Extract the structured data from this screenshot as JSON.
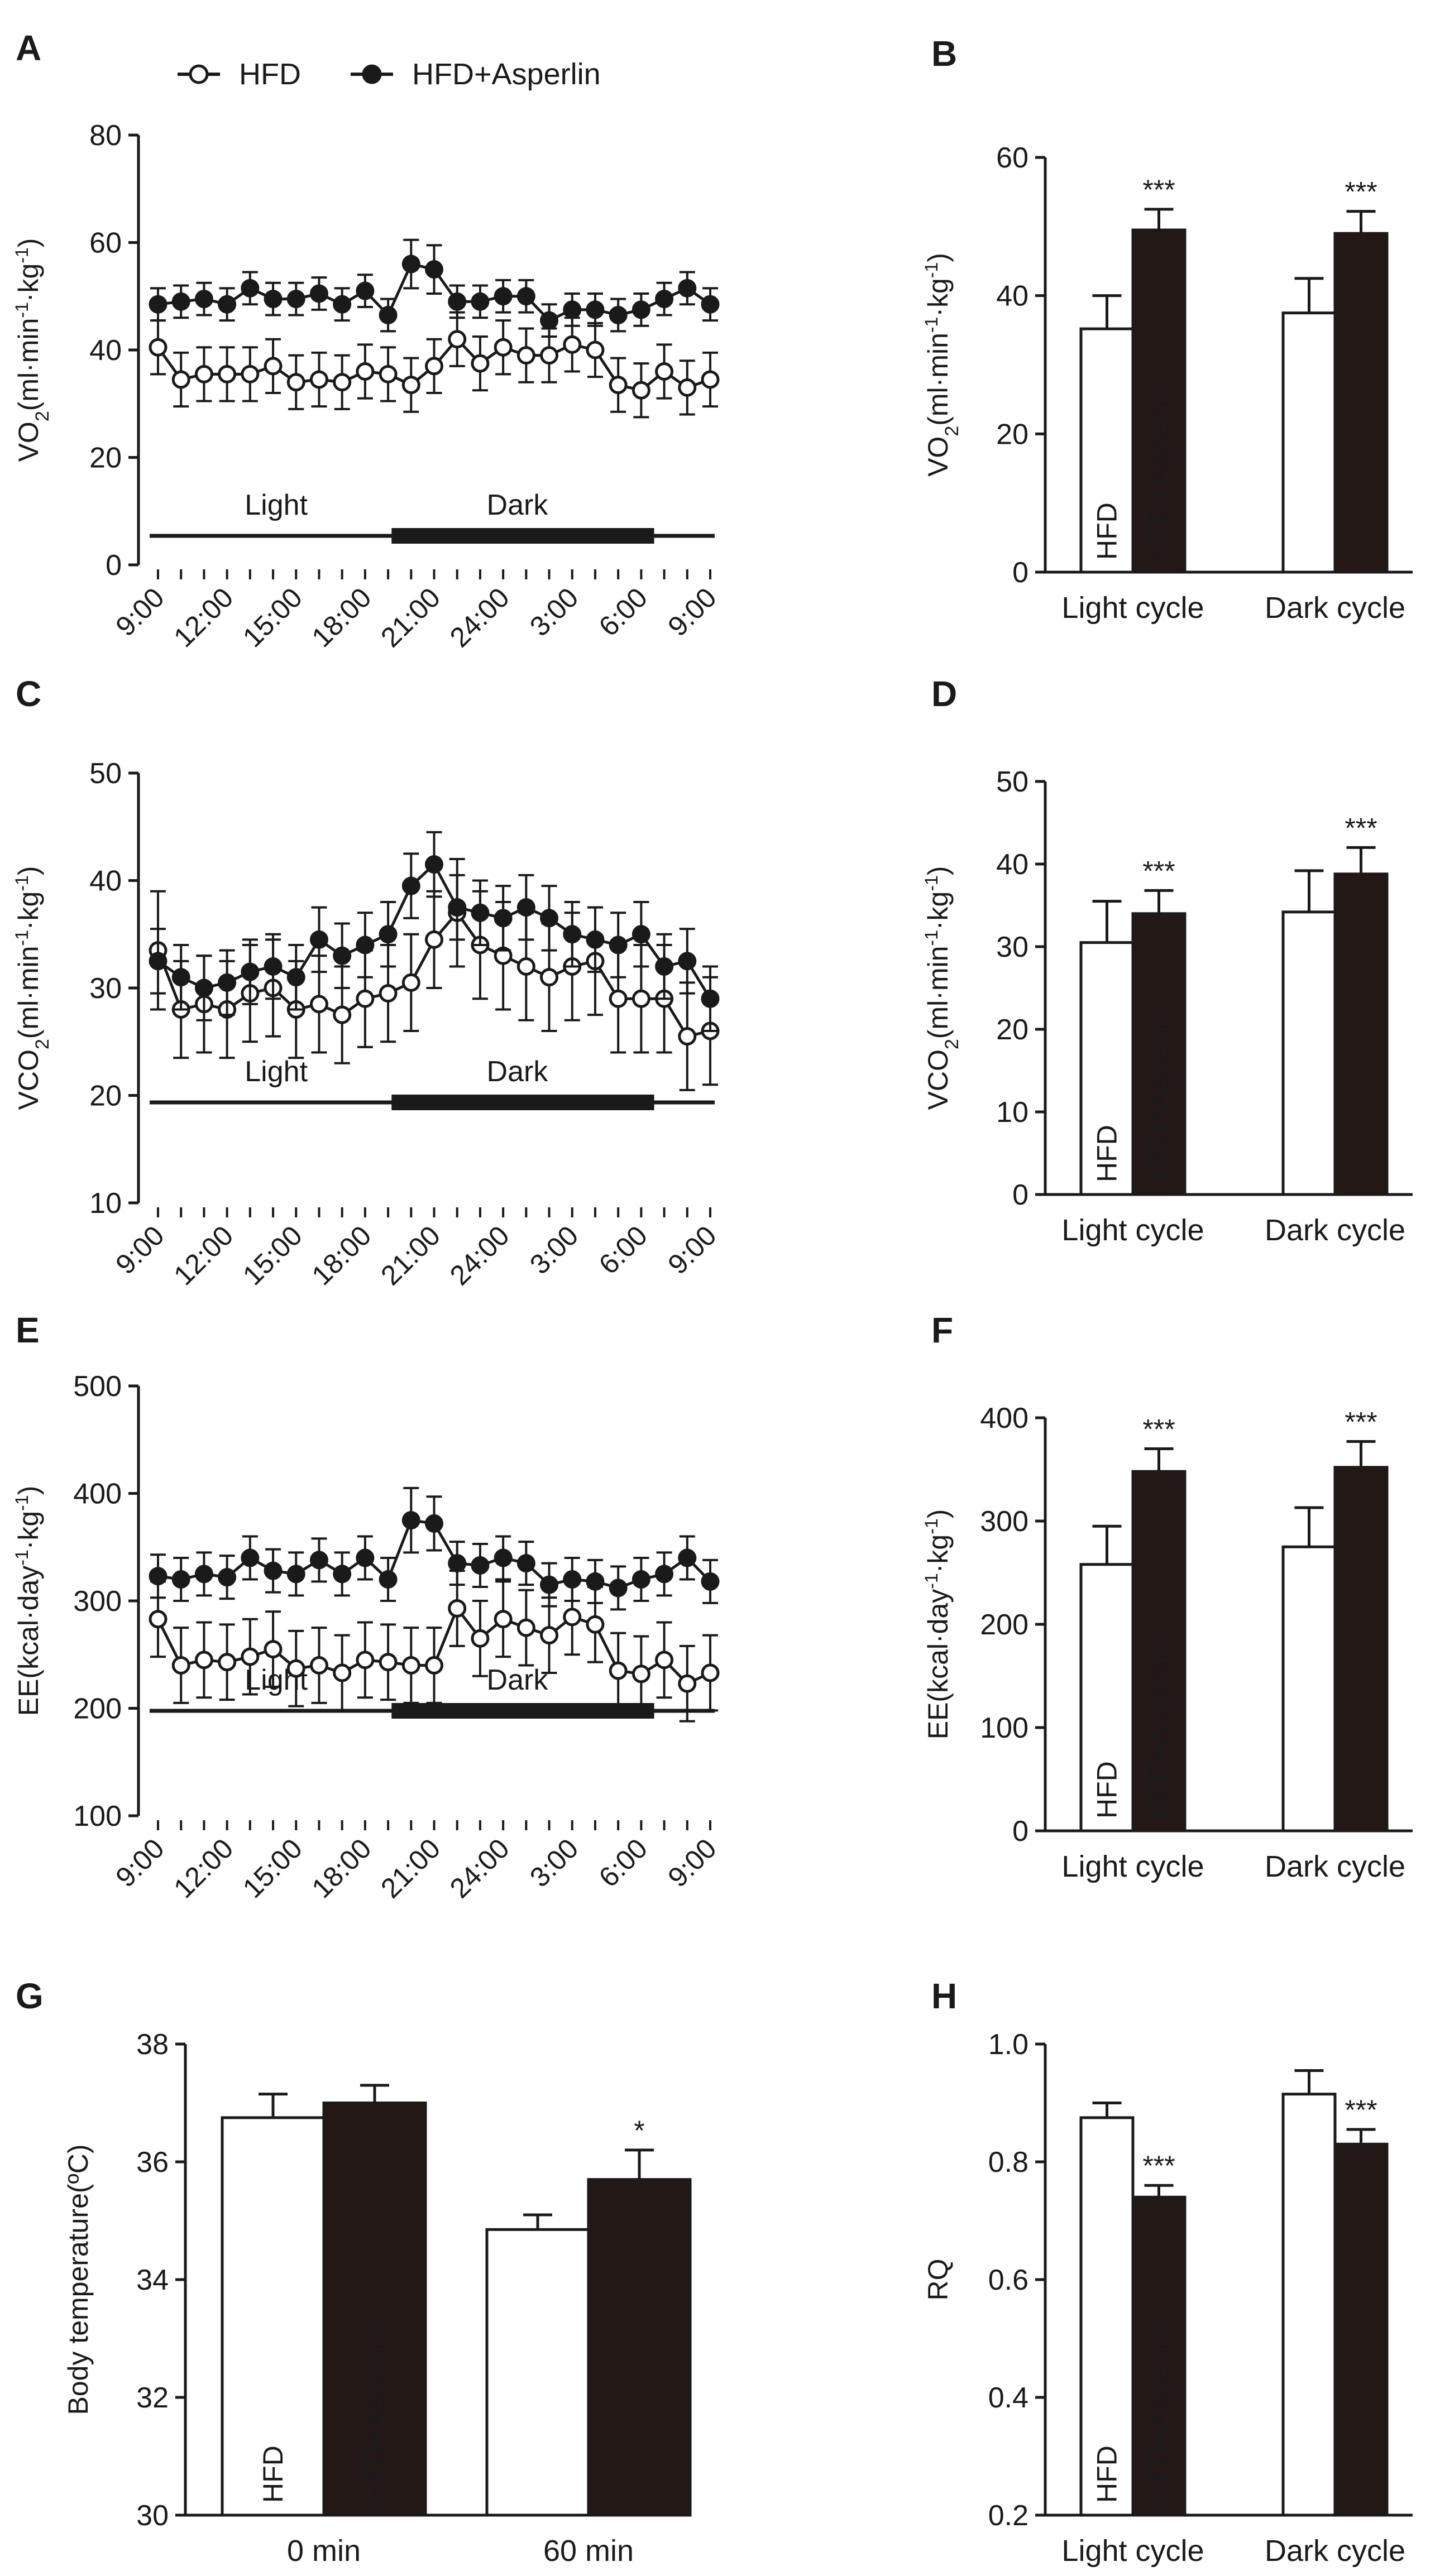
{
  "panel_letters": [
    "A",
    "B",
    "C",
    "D",
    "E",
    "F",
    "G",
    "H"
  ],
  "legend": {
    "hfd": "HFD",
    "asp": "HFD+Asperlin"
  },
  "colors": {
    "hfd_fill": "#ffffff",
    "asp_fill": "#231815",
    "ink": "#1a1a1a"
  },
  "chart_data": [
    {
      "panel": "A",
      "type": "line",
      "ylabel": "VO2(ml·min-1·kg-1)",
      "ylim": [
        0,
        80
      ],
      "yticks": [
        0,
        20,
        40,
        60,
        80
      ],
      "x_tick_labels": [
        "9:00",
        "12:00",
        "15:00",
        "18:00",
        "21:00",
        "24:00",
        "3:00",
        "6:00",
        "9:00"
      ],
      "light_label": "Light",
      "dark_label": "Dark",
      "series": [
        {
          "name": "HFD",
          "marker": "open",
          "values": [
            40.5,
            34.5,
            35.5,
            35.5,
            35.5,
            37,
            34,
            34.5,
            34,
            36,
            35.5,
            33.5,
            37,
            42,
            37.5,
            40.5,
            39,
            39,
            41,
            40,
            33.5,
            32.5,
            36,
            33,
            34.5
          ],
          "errors": [
            5,
            5,
            5,
            5,
            5,
            5,
            5,
            5,
            5,
            5,
            5,
            5,
            5,
            5,
            5,
            5,
            5,
            5,
            5,
            5,
            5,
            5,
            5,
            5,
            5
          ]
        },
        {
          "name": "HFD+Asperlin",
          "marker": "filled",
          "values": [
            48.5,
            49,
            49.5,
            48.5,
            51.5,
            49.5,
            49.5,
            50.5,
            48.5,
            51,
            46.5,
            56,
            55,
            49,
            49,
            50,
            50,
            45.5,
            47.5,
            47.5,
            46.5,
            47.5,
            49.5,
            51.5,
            48.5
          ],
          "errors": [
            3,
            3,
            3,
            3,
            3,
            3,
            3,
            3,
            3,
            3,
            3,
            4.5,
            4.5,
            3,
            3,
            3,
            3,
            3,
            3,
            3,
            3,
            3,
            3,
            3,
            3
          ]
        }
      ]
    },
    {
      "panel": "B",
      "type": "bar",
      "ylabel": "VO2(ml·min-1·kg-1)",
      "ylim": [
        0,
        60
      ],
      "yticks": [
        0,
        20,
        40,
        60
      ],
      "categories": [
        "Light cycle",
        "Dark cycle"
      ],
      "series": [
        {
          "name": "HFD",
          "values": [
            35.2,
            37.5
          ],
          "errors": [
            4.8,
            5.0
          ]
        },
        {
          "name": "HFD+Asperlin",
          "values": [
            49.5,
            49.0
          ],
          "errors": [
            3.0,
            3.2
          ]
        }
      ],
      "annotations": [
        "***",
        "***"
      ]
    },
    {
      "panel": "C",
      "type": "line",
      "ylabel": "VCO2(ml·min-1·kg-1)",
      "ylim": [
        10,
        50
      ],
      "yticks": [
        10,
        20,
        30,
        40,
        50
      ],
      "x_tick_labels": [
        "9:00",
        "12:00",
        "15:00",
        "18:00",
        "21:00",
        "24:00",
        "3:00",
        "6:00",
        "9:00"
      ],
      "light_label": "Light",
      "dark_label": "Dark",
      "series": [
        {
          "name": "HFD",
          "marker": "open",
          "values": [
            33.5,
            28,
            28.5,
            28,
            29.5,
            30,
            28,
            28.5,
            27.5,
            29,
            29.5,
            30.5,
            34.5,
            37,
            34,
            33,
            32,
            31,
            32,
            32.5,
            29,
            29,
            29,
            25.5,
            26
          ],
          "errors": [
            5.5,
            4.5,
            4.5,
            4.5,
            4.5,
            4.5,
            4.5,
            4.5,
            4.5,
            4.5,
            4.5,
            4.5,
            4.5,
            5,
            5,
            5,
            5,
            5,
            5,
            5,
            5,
            5,
            5,
            5,
            5
          ]
        },
        {
          "name": "HFD+Asperlin",
          "marker": "filled",
          "values": [
            32.5,
            31,
            30,
            30.5,
            31.5,
            32,
            31,
            34.5,
            33,
            34,
            35,
            39.5,
            41.5,
            37.5,
            37,
            36.5,
            37.5,
            36.5,
            35,
            34.5,
            34,
            35,
            32,
            32.5,
            29
          ],
          "errors": [
            3,
            3,
            3,
            3,
            3,
            3,
            3,
            3,
            3,
            3,
            3,
            3,
            3,
            3,
            3,
            3,
            3,
            3,
            3,
            3,
            3,
            3,
            3,
            3,
            3
          ]
        }
      ]
    },
    {
      "panel": "D",
      "type": "bar",
      "ylabel": "VCO2(ml·min-1·kg-1)",
      "ylim": [
        0,
        50
      ],
      "yticks": [
        0,
        10,
        20,
        30,
        40,
        50
      ],
      "categories": [
        "Light cycle",
        "Dark cycle"
      ],
      "series": [
        {
          "name": "HFD",
          "values": [
            30.5,
            34.2
          ],
          "errors": [
            5.0,
            5.0
          ]
        },
        {
          "name": "HFD+Asperlin",
          "values": [
            34.0,
            38.8
          ],
          "errors": [
            2.8,
            3.2
          ]
        }
      ],
      "annotations": [
        "***",
        "***"
      ]
    },
    {
      "panel": "E",
      "type": "line",
      "ylabel": "EE(kcal·day-1·kg-1)",
      "ylim": [
        100,
        500
      ],
      "yticks": [
        100,
        200,
        300,
        400,
        500
      ],
      "x_tick_labels": [
        "9:00",
        "12:00",
        "15:00",
        "18:00",
        "21:00",
        "24:00",
        "3:00",
        "6:00",
        "9:00"
      ],
      "light_label": "Light",
      "dark_label": "Dark",
      "series": [
        {
          "name": "HFD",
          "marker": "open",
          "values": [
            283,
            240,
            245,
            243,
            248,
            255,
            237,
            240,
            233,
            245,
            243,
            240,
            240,
            293,
            265,
            283,
            275,
            268,
            285,
            278,
            235,
            232,
            245,
            223,
            233
          ],
          "errors": [
            35,
            35,
            35,
            35,
            35,
            35,
            35,
            35,
            35,
            35,
            35,
            35,
            35,
            35,
            35,
            35,
            35,
            35,
            35,
            35,
            35,
            35,
            35,
            35,
            35
          ]
        },
        {
          "name": "HFD+Asperlin",
          "marker": "filled",
          "values": [
            323,
            320,
            325,
            322,
            340,
            328,
            325,
            338,
            325,
            340,
            320,
            375,
            372,
            335,
            333,
            340,
            335,
            315,
            320,
            318,
            312,
            320,
            325,
            340,
            318
          ],
          "errors": [
            20,
            20,
            20,
            20,
            20,
            20,
            20,
            20,
            20,
            20,
            20,
            30,
            25,
            20,
            20,
            20,
            20,
            20,
            20,
            20,
            20,
            20,
            20,
            20,
            20
          ]
        }
      ]
    },
    {
      "panel": "F",
      "type": "bar",
      "ylabel": "EE(kcal·day-1·kg-1)",
      "ylim": [
        0,
        400
      ],
      "yticks": [
        0,
        100,
        200,
        300,
        400
      ],
      "categories": [
        "Light cycle",
        "Dark cycle"
      ],
      "series": [
        {
          "name": "HFD",
          "values": [
            258,
            275
          ],
          "errors": [
            37,
            38
          ]
        },
        {
          "name": "HFD+Asperlin",
          "values": [
            348,
            352
          ],
          "errors": [
            22,
            25
          ]
        }
      ],
      "annotations": [
        "***",
        "***"
      ]
    },
    {
      "panel": "G",
      "type": "bar",
      "ylabel": "Body temperature(ºC)",
      "ylim": [
        30,
        38
      ],
      "yticks": [
        30,
        32,
        34,
        36,
        38
      ],
      "categories": [
        "0 min",
        "60 min"
      ],
      "series": [
        {
          "name": "HFD",
          "values": [
            36.75,
            34.85
          ],
          "errors": [
            0.4,
            0.25
          ]
        },
        {
          "name": "HFD+Asperlin",
          "values": [
            37.0,
            35.7
          ],
          "errors": [
            0.3,
            0.5
          ]
        }
      ],
      "annotations": [
        "",
        "*"
      ]
    },
    {
      "panel": "H",
      "type": "bar",
      "ylabel": "RQ",
      "ylim": [
        0.2,
        1.0
      ],
      "yticks": [
        "0.2",
        "0.4",
        "0.6",
        "0.8",
        "1.0"
      ],
      "categories": [
        "Light cycle",
        "Dark cycle"
      ],
      "series": [
        {
          "name": "HFD",
          "values": [
            0.875,
            0.915
          ],
          "errors": [
            0.025,
            0.04
          ]
        },
        {
          "name": "HFD+Asperlin",
          "values": [
            0.74,
            0.83
          ],
          "errors": [
            0.02,
            0.025
          ]
        }
      ],
      "annotations": [
        "***",
        "***"
      ]
    }
  ]
}
